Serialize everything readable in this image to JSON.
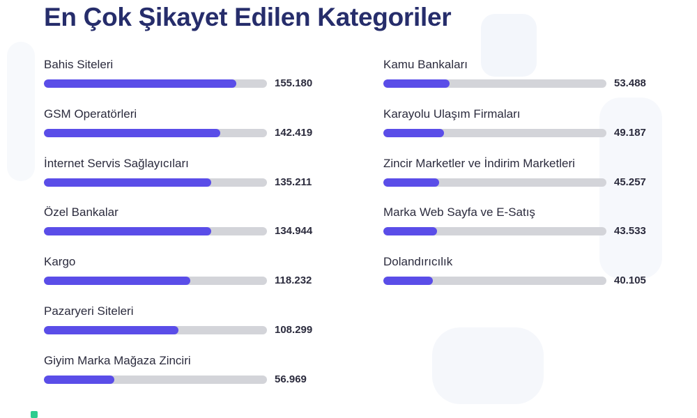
{
  "header": {
    "title": "En Çok Şikayet Edilen Kategoriler"
  },
  "colors": {
    "title": "#262d6b",
    "bar_fill": "#5a4de8",
    "bar_track": "#d3d4d9",
    "text": "#2b2b3d",
    "brand_accent": "#2ecc8f"
  },
  "chart_data": {
    "type": "bar",
    "orientation": "horizontal",
    "title": "En Çok Şikayet Edilen Kategoriler",
    "xlim": [
      0,
      180000
    ],
    "grid": false,
    "categories": [
      "Bahis Siteleri",
      "GSM Operatörleri",
      "İnternet Servis Sağlayıcıları",
      "Özel Bankalar",
      "Kargo",
      "Pazaryeri Siteleri",
      "Giyim Marka Mağaza Zinciri",
      "Kamu Bankaları",
      "Karayolu Ulaşım Firmaları",
      "Zincir Marketler ve İndirim Marketleri",
      "Marka Web Sayfa ve E-Satış",
      "Dolandırıcılık"
    ],
    "values": [
      155180,
      142419,
      135211,
      134944,
      118232,
      108299,
      56969,
      53488,
      49187,
      45257,
      43533,
      40105
    ],
    "value_labels": [
      "155.180",
      "142.419",
      "135.211",
      "134.944",
      "118.232",
      "108.299",
      "56.969",
      "53.488",
      "49.187",
      "45.257",
      "43.533",
      "40.105"
    ],
    "columns": [
      [
        0,
        1,
        2,
        3,
        4,
        5,
        6
      ],
      [
        7,
        8,
        9,
        10,
        11
      ]
    ]
  }
}
